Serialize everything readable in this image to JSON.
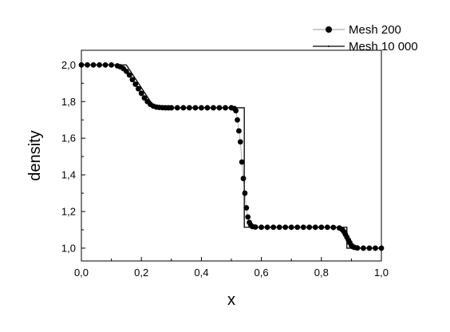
{
  "chart_data": {
    "type": "line",
    "title": "",
    "xlabel": "x",
    "ylabel": "density",
    "xlim": [
      0.0,
      1.0
    ],
    "ylim": [
      0.93,
      2.08
    ],
    "x_ticks": [
      0.0,
      0.2,
      0.4,
      0.6,
      0.8,
      1.0
    ],
    "x_tick_labels": [
      "0,0",
      "0,2",
      "0,4",
      "0,6",
      "0,8",
      "1,0"
    ],
    "y_ticks": [
      1.0,
      1.2,
      1.4,
      1.6,
      1.8,
      2.0
    ],
    "y_tick_labels": [
      "1,0",
      "1,2",
      "1,4",
      "1,6",
      "1,8",
      "2,0"
    ],
    "grid": false,
    "legend_position": "top-right",
    "series": [
      {
        "name": "Mesh 200",
        "style": "dots",
        "color": "#000000",
        "x": [
          0.0,
          0.02,
          0.04,
          0.06,
          0.08,
          0.1,
          0.12,
          0.13,
          0.14,
          0.15,
          0.16,
          0.17,
          0.18,
          0.19,
          0.2,
          0.21,
          0.22,
          0.23,
          0.24,
          0.25,
          0.26,
          0.27,
          0.28,
          0.29,
          0.3,
          0.32,
          0.34,
          0.36,
          0.38,
          0.4,
          0.42,
          0.44,
          0.46,
          0.48,
          0.5,
          0.51,
          0.515,
          0.52,
          0.525,
          0.53,
          0.535,
          0.54,
          0.545,
          0.55,
          0.555,
          0.56,
          0.565,
          0.57,
          0.58,
          0.6,
          0.62,
          0.64,
          0.66,
          0.68,
          0.7,
          0.72,
          0.74,
          0.76,
          0.78,
          0.8,
          0.82,
          0.84,
          0.86,
          0.87,
          0.875,
          0.88,
          0.885,
          0.89,
          0.895,
          0.9,
          0.905,
          0.91,
          0.92,
          0.94,
          0.96,
          0.98,
          1.0
        ],
        "y": [
          2.0,
          2.0,
          2.0,
          2.0,
          2.0,
          2.0,
          1.995,
          1.99,
          1.98,
          1.965,
          1.945,
          1.92,
          1.895,
          1.87,
          1.845,
          1.82,
          1.8,
          1.785,
          1.775,
          1.77,
          1.768,
          1.767,
          1.766,
          1.766,
          1.766,
          1.766,
          1.766,
          1.766,
          1.766,
          1.766,
          1.766,
          1.766,
          1.766,
          1.766,
          1.766,
          1.762,
          1.75,
          1.7,
          1.64,
          1.58,
          1.47,
          1.38,
          1.3,
          1.22,
          1.17,
          1.14,
          1.125,
          1.118,
          1.115,
          1.114,
          1.114,
          1.114,
          1.114,
          1.114,
          1.114,
          1.114,
          1.114,
          1.114,
          1.114,
          1.114,
          1.114,
          1.113,
          1.11,
          1.1,
          1.09,
          1.075,
          1.06,
          1.045,
          1.03,
          1.015,
          1.008,
          1.004,
          1.001,
          1.0,
          1.0,
          1.0,
          1.0
        ]
      },
      {
        "name": "Mesh 10 000",
        "style": "line",
        "color": "#000000",
        "x": [
          0.0,
          0.15,
          0.244,
          0.52,
          0.52,
          0.543,
          0.543,
          0.885,
          0.885,
          1.0
        ],
        "y": [
          2.0,
          2.0,
          1.766,
          1.766,
          1.766,
          1.766,
          1.114,
          1.114,
          1.0,
          1.0
        ]
      }
    ]
  }
}
